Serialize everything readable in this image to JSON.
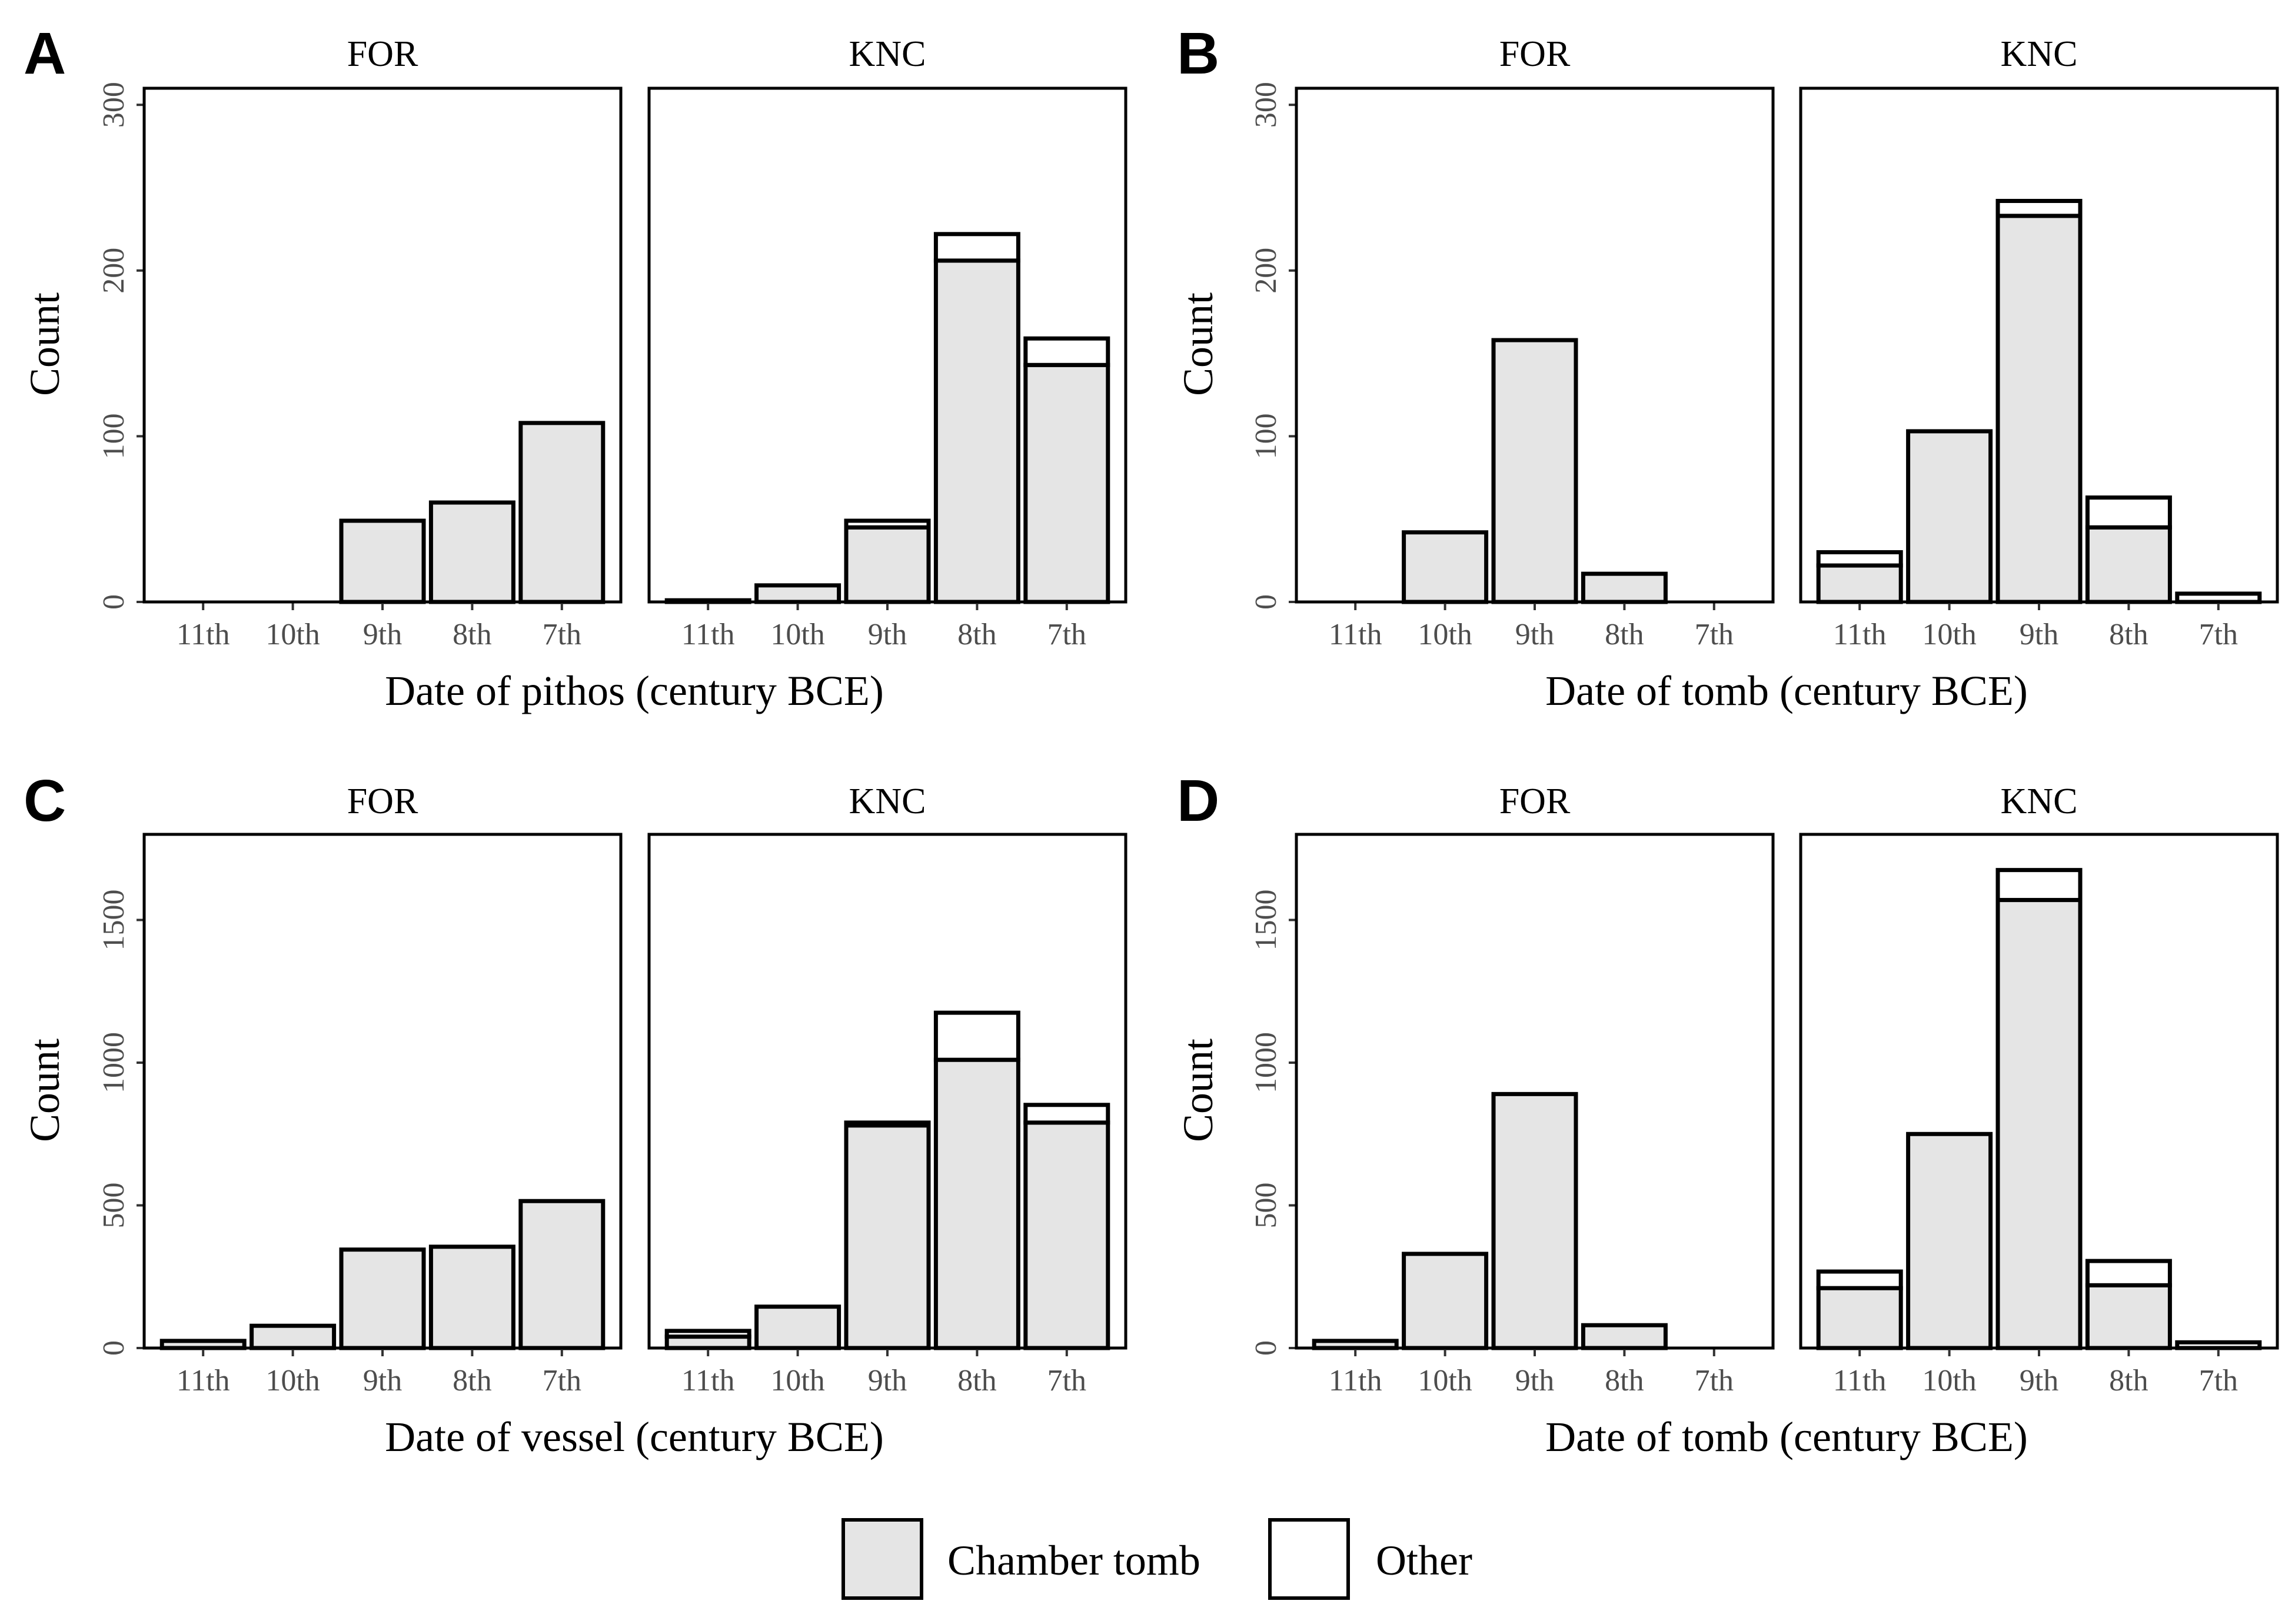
{
  "legend": {
    "items": [
      {
        "label": "Chamber tomb",
        "color": "#e5e5e5"
      },
      {
        "label": "Other",
        "color": "#ffffff"
      }
    ]
  },
  "chart_data": [
    {
      "type": "bar",
      "stacked": true,
      "letter": "A",
      "xlabel": "Date of pithos (century BCE)",
      "ylabel": "Count",
      "ylim": [
        0,
        310
      ],
      "yticks": [
        0,
        100,
        200,
        300
      ],
      "categories": [
        "11th",
        "10th",
        "9th",
        "8th",
        "7th"
      ],
      "facets": [
        {
          "label": "FOR",
          "series": [
            {
              "name": "Chamber tomb",
              "values": [
                0,
                0,
                49,
                60,
                108
              ]
            },
            {
              "name": "Other",
              "values": [
                0,
                0,
                0,
                0,
                0
              ]
            }
          ]
        },
        {
          "label": "KNC",
          "series": [
            {
              "name": "Chamber tomb",
              "values": [
                1,
                10,
                45,
                206,
                143
              ]
            },
            {
              "name": "Other",
              "values": [
                0,
                0,
                4,
                16,
                16
              ]
            }
          ]
        }
      ]
    },
    {
      "type": "bar",
      "stacked": true,
      "letter": "B",
      "xlabel": "Date of tomb (century BCE)",
      "ylabel": "Count",
      "ylim": [
        0,
        310
      ],
      "yticks": [
        0,
        100,
        200,
        300
      ],
      "categories": [
        "11th",
        "10th",
        "9th",
        "8th",
        "7th"
      ],
      "facets": [
        {
          "label": "FOR",
          "series": [
            {
              "name": "Chamber tomb",
              "values": [
                0,
                42,
                158,
                17,
                0
              ]
            },
            {
              "name": "Other",
              "values": [
                0,
                0,
                0,
                0,
                0
              ]
            }
          ]
        },
        {
          "label": "KNC",
          "series": [
            {
              "name": "Chamber tomb",
              "values": [
                22,
                103,
                233,
                45,
                0
              ]
            },
            {
              "name": "Other",
              "values": [
                8,
                0,
                9,
                18,
                5
              ]
            }
          ]
        }
      ]
    },
    {
      "type": "bar",
      "stacked": true,
      "letter": "C",
      "xlabel": "Date of vessel (century BCE)",
      "ylabel": "Count",
      "ylim": [
        0,
        1800
      ],
      "yticks": [
        0,
        500,
        1000,
        1500
      ],
      "categories": [
        "11th",
        "10th",
        "9th",
        "8th",
        "7th"
      ],
      "facets": [
        {
          "label": "FOR",
          "series": [
            {
              "name": "Chamber tomb",
              "values": [
                25,
                78,
                345,
                355,
                515
              ]
            },
            {
              "name": "Other",
              "values": [
                0,
                0,
                0,
                0,
                0
              ]
            }
          ]
        },
        {
          "label": "KNC",
          "series": [
            {
              "name": "Chamber tomb",
              "values": [
                40,
                145,
                780,
                1010,
                790
              ]
            },
            {
              "name": "Other",
              "values": [
                20,
                0,
                10,
                165,
                62
              ]
            }
          ]
        }
      ]
    },
    {
      "type": "bar",
      "stacked": true,
      "letter": "D",
      "xlabel": "Date of tomb (century BCE)",
      "ylabel": "Count",
      "ylim": [
        0,
        1800
      ],
      "yticks": [
        0,
        500,
        1000,
        1500
      ],
      "categories": [
        "11th",
        "10th",
        "9th",
        "8th",
        "7th"
      ],
      "facets": [
        {
          "label": "FOR",
          "series": [
            {
              "name": "Chamber tomb",
              "values": [
                25,
                330,
                890,
                80,
                0
              ]
            },
            {
              "name": "Other",
              "values": [
                0,
                0,
                0,
                0,
                0
              ]
            }
          ]
        },
        {
          "label": "KNC",
          "series": [
            {
              "name": "Chamber tomb",
              "values": [
                210,
                750,
                1570,
                220,
                0
              ]
            },
            {
              "name": "Other",
              "values": [
                58,
                0,
                105,
                85,
                20
              ]
            }
          ]
        }
      ]
    }
  ]
}
